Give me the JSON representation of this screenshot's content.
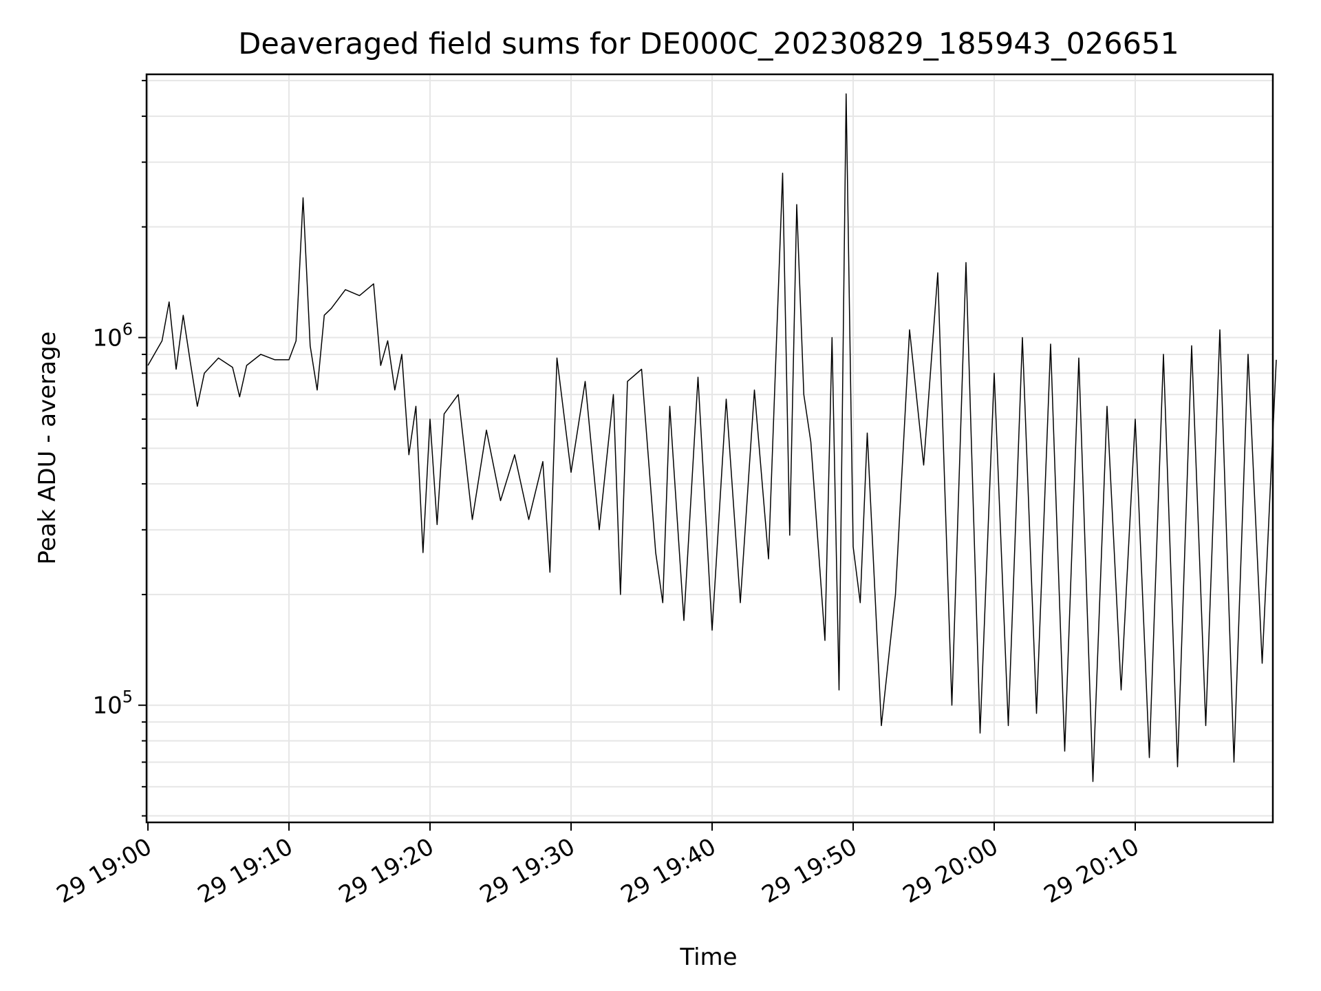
{
  "chart_data": {
    "type": "line",
    "title": "Deaveraged field sums for DE000C_20230829_185943_026651",
    "xlabel": "Time",
    "ylabel": "Peak ADU - average",
    "yscale": "log",
    "ylim": [
      48000,
      5200000
    ],
    "xlim": [
      "19:00",
      "20:20"
    ],
    "grid": true,
    "line_color": "#000000",
    "x_tick_labels": [
      "29 19:00",
      "29 19:10",
      "29 19:20",
      "29 19:30",
      "29 19:40",
      "29 19:50",
      "29 20:00",
      "29 20:10"
    ],
    "y_tick_labels": [
      {
        "base": "10",
        "exp": "5",
        "value": 100000
      },
      {
        "base": "10",
        "exp": "6",
        "value": 1000000
      }
    ],
    "series": [
      {
        "points": [
          [
            "19:00",
            840000
          ],
          [
            "19:01",
            980000
          ],
          [
            "19:01:30",
            1250000
          ],
          [
            "19:02",
            820000
          ],
          [
            "19:02:30",
            1150000
          ],
          [
            "19:03",
            860000
          ],
          [
            "19:03:30",
            650000
          ],
          [
            "19:04",
            800000
          ],
          [
            "19:05",
            880000
          ],
          [
            "19:06",
            830000
          ],
          [
            "19:06:30",
            690000
          ],
          [
            "19:07",
            840000
          ],
          [
            "19:08",
            900000
          ],
          [
            "19:09",
            870000
          ],
          [
            "19:10",
            870000
          ],
          [
            "19:10:30",
            980000
          ],
          [
            "19:11",
            2400000
          ],
          [
            "19:11:30",
            950000
          ],
          [
            "19:12",
            720000
          ],
          [
            "19:12:30",
            1150000
          ],
          [
            "19:13",
            1200000
          ],
          [
            "19:14",
            1350000
          ],
          [
            "19:15",
            1300000
          ],
          [
            "19:16",
            1400000
          ],
          [
            "19:16:30",
            840000
          ],
          [
            "19:17",
            980000
          ],
          [
            "19:17:30",
            720000
          ],
          [
            "19:18",
            900000
          ],
          [
            "19:18:30",
            480000
          ],
          [
            "19:19",
            650000
          ],
          [
            "19:19:30",
            260000
          ],
          [
            "19:20",
            600000
          ],
          [
            "19:20:30",
            310000
          ],
          [
            "19:21",
            620000
          ],
          [
            "19:22",
            700000
          ],
          [
            "19:23",
            320000
          ],
          [
            "19:24",
            560000
          ],
          [
            "19:25",
            360000
          ],
          [
            "19:26",
            480000
          ],
          [
            "19:27",
            320000
          ],
          [
            "19:28",
            460000
          ],
          [
            "19:28:30",
            230000
          ],
          [
            "19:29",
            880000
          ],
          [
            "19:30",
            430000
          ],
          [
            "19:31",
            760000
          ],
          [
            "19:32",
            300000
          ],
          [
            "19:33",
            700000
          ],
          [
            "19:33:30",
            200000
          ],
          [
            "19:34",
            760000
          ],
          [
            "19:35",
            820000
          ],
          [
            "19:36",
            260000
          ],
          [
            "19:36:30",
            190000
          ],
          [
            "19:37",
            650000
          ],
          [
            "19:38",
            170000
          ],
          [
            "19:39",
            780000
          ],
          [
            "19:40",
            160000
          ],
          [
            "19:41",
            680000
          ],
          [
            "19:42",
            190000
          ],
          [
            "19:43",
            720000
          ],
          [
            "19:44",
            250000
          ],
          [
            "19:45",
            2800000
          ],
          [
            "19:45:30",
            290000
          ],
          [
            "19:46",
            2300000
          ],
          [
            "19:46:30",
            700000
          ],
          [
            "19:47",
            520000
          ],
          [
            "19:48",
            150000
          ],
          [
            "19:48:30",
            1000000
          ],
          [
            "19:49",
            110000
          ],
          [
            "19:49:30",
            4600000
          ],
          [
            "19:50",
            270000
          ],
          [
            "19:50:30",
            190000
          ],
          [
            "19:51",
            550000
          ],
          [
            "19:52",
            88000
          ],
          [
            "19:53",
            200000
          ],
          [
            "19:54",
            1050000
          ],
          [
            "19:55",
            450000
          ],
          [
            "19:56",
            1500000
          ],
          [
            "19:57",
            100000
          ],
          [
            "19:58",
            1600000
          ],
          [
            "19:59",
            84000
          ],
          [
            "20:00",
            800000
          ],
          [
            "20:01",
            88000
          ],
          [
            "20:02",
            1000000
          ],
          [
            "20:03",
            95000
          ],
          [
            "20:04",
            960000
          ],
          [
            "20:05",
            75000
          ],
          [
            "20:06",
            880000
          ],
          [
            "20:07",
            62000
          ],
          [
            "20:08",
            650000
          ],
          [
            "20:09",
            110000
          ],
          [
            "20:10",
            600000
          ],
          [
            "20:11",
            72000
          ],
          [
            "20:12",
            900000
          ],
          [
            "20:13",
            68000
          ],
          [
            "20:14",
            950000
          ],
          [
            "20:15",
            88000
          ],
          [
            "20:16",
            1050000
          ],
          [
            "20:17",
            70000
          ],
          [
            "20:18",
            900000
          ],
          [
            "20:19",
            130000
          ],
          [
            "20:20",
            870000
          ]
        ]
      }
    ]
  }
}
